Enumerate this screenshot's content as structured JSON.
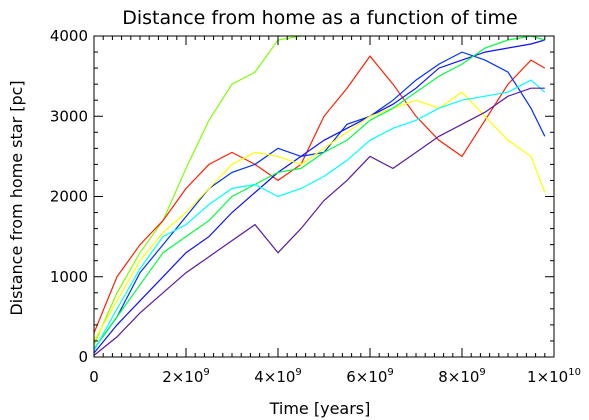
{
  "chart_data": {
    "type": "line",
    "title": "Distance from home as a function of time",
    "xlabel": "Time [years]",
    "ylabel": "Distance from home star [pc]",
    "xlim": [
      0,
      10000000000
    ],
    "ylim": [
      0,
      4000
    ],
    "grid": false,
    "legend": "none",
    "x_ticks": [
      {
        "value": 0,
        "mantissa": "0",
        "exponent": ""
      },
      {
        "value": 2000000000,
        "mantissa": "2×10",
        "exponent": "9"
      },
      {
        "value": 4000000000,
        "mantissa": "4×10",
        "exponent": "9"
      },
      {
        "value": 6000000000,
        "mantissa": "6×10",
        "exponent": "9"
      },
      {
        "value": 8000000000,
        "mantissa": "8×10",
        "exponent": "9"
      },
      {
        "value": 10000000000,
        "mantissa": "1×10",
        "exponent": "10"
      }
    ],
    "y_ticks": [
      0,
      1000,
      2000,
      3000,
      4000
    ],
    "x": [
      0,
      500000000,
      1000000000,
      1500000000,
      2000000000,
      2500000000,
      3000000000,
      3500000000,
      4000000000,
      4500000000,
      5000000000,
      5500000000,
      6000000000,
      6500000000,
      7000000000,
      7500000000,
      8000000000,
      8500000000,
      9000000000,
      9500000000,
      9800000000
    ],
    "series": [
      {
        "color": "#80ff00",
        "values": [
          150,
          800,
          1300,
          1700,
          2350,
          2950,
          3400,
          3550,
          3950,
          4000,
          null,
          null,
          null,
          null,
          null,
          null,
          null,
          null,
          null,
          null,
          null
        ]
      },
      {
        "color": "#ff2000",
        "values": [
          300,
          1000,
          1400,
          1700,
          2100,
          2400,
          2550,
          2400,
          2200,
          2400,
          3000,
          3350,
          3750,
          3400,
          3000,
          2700,
          2500,
          2950,
          3400,
          3700,
          3600
        ]
      },
      {
        "color": "#0030ff",
        "values": [
          100,
          500,
          1050,
          1400,
          1750,
          2100,
          2300,
          2400,
          2600,
          2500,
          2550,
          2900,
          3000,
          3200,
          3450,
          3650,
          3800,
          3700,
          3550,
          3100,
          2750
        ]
      },
      {
        "color": "#1010ff",
        "values": [
          50,
          400,
          700,
          1000,
          1300,
          1500,
          1800,
          2050,
          2300,
          2500,
          2700,
          2850,
          3000,
          3150,
          3350,
          3600,
          3700,
          3800,
          3850,
          3900,
          3950
        ]
      },
      {
        "color": "#ffff00",
        "values": [
          200,
          700,
          1200,
          1550,
          1800,
          2100,
          2400,
          2550,
          2500,
          2400,
          2600,
          2800,
          3000,
          3100,
          3200,
          3100,
          3300,
          3000,
          2700,
          2500,
          2050
        ]
      },
      {
        "color": "#00ff40",
        "values": [
          100,
          500,
          900,
          1300,
          1500,
          1700,
          2000,
          2150,
          2300,
          2350,
          2550,
          2700,
          2950,
          3100,
          3300,
          3500,
          3650,
          3850,
          3950,
          4000,
          3950
        ]
      },
      {
        "color": "#00ffff",
        "values": [
          80,
          600,
          1100,
          1500,
          1650,
          1900,
          2100,
          2150,
          2000,
          2100,
          2250,
          2450,
          2700,
          2850,
          2950,
          3100,
          3200,
          3250,
          3300,
          3450,
          3300
        ]
      },
      {
        "color": "#5a1aa0",
        "values": [
          20,
          250,
          550,
          800,
          1050,
          1250,
          1450,
          1650,
          1300,
          1600,
          1950,
          2200,
          2500,
          2350,
          2550,
          2750,
          2900,
          3050,
          3250,
          3350,
          3350
        ]
      }
    ]
  }
}
